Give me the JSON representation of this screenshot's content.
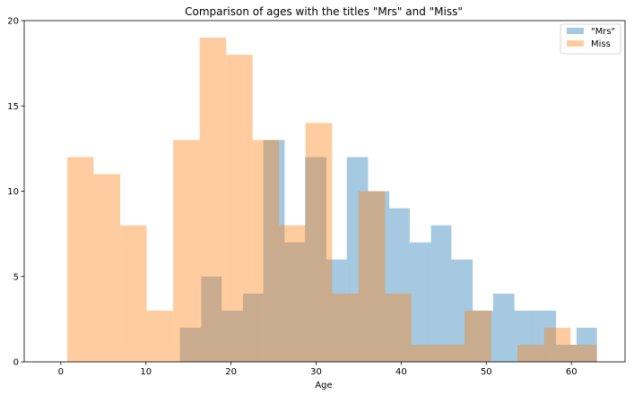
{
  "chart_data": {
    "type": "bar",
    "subtype": "overlapping-histogram",
    "title": "Comparison of ages with the titles \"Mrs\" and \"Miss\"",
    "xlabel": "Age",
    "ylabel": "",
    "xlim": [
      -4.3,
      66.3
    ],
    "ylim": [
      0,
      20
    ],
    "xticks": [
      0,
      10,
      20,
      30,
      40,
      50,
      60
    ],
    "yticks": [
      0,
      5,
      10,
      15,
      20
    ],
    "grid": false,
    "legend": "top-right",
    "bar_opacity": 0.4,
    "series": [
      {
        "name": "\"Mrs\"",
        "color": "#1f77b4",
        "bins": [
          {
            "x0": 14.0,
            "x1": 16.5,
            "count": 2
          },
          {
            "x0": 16.5,
            "x1": 18.9,
            "count": 5
          },
          {
            "x0": 18.9,
            "x1": 21.4,
            "count": 3
          },
          {
            "x0": 21.4,
            "x1": 23.8,
            "count": 4
          },
          {
            "x0": 23.8,
            "x1": 26.3,
            "count": 13
          },
          {
            "x0": 26.3,
            "x1": 28.7,
            "count": 7
          },
          {
            "x0": 28.7,
            "x1": 31.2,
            "count": 12
          },
          {
            "x0": 31.2,
            "x1": 33.6,
            "count": 6
          },
          {
            "x0": 33.6,
            "x1": 36.1,
            "count": 12
          },
          {
            "x0": 36.1,
            "x1": 38.6,
            "count": 10
          },
          {
            "x0": 38.6,
            "x1": 41.0,
            "count": 9
          },
          {
            "x0": 41.0,
            "x1": 43.5,
            "count": 7
          },
          {
            "x0": 43.5,
            "x1": 45.9,
            "count": 8
          },
          {
            "x0": 45.9,
            "x1": 48.4,
            "count": 6
          },
          {
            "x0": 48.4,
            "x1": 50.8,
            "count": 3
          },
          {
            "x0": 50.8,
            "x1": 53.3,
            "count": 4
          },
          {
            "x0": 53.3,
            "x1": 55.7,
            "count": 3
          },
          {
            "x0": 55.7,
            "x1": 58.2,
            "count": 3
          },
          {
            "x0": 58.2,
            "x1": 60.6,
            "count": 1
          },
          {
            "x0": 60.6,
            "x1": 63.0,
            "count": 2
          }
        ]
      },
      {
        "name": "Miss",
        "color": "#ff7f0e",
        "bins": [
          {
            "x0": 0.75,
            "x1": 3.86,
            "count": 12
          },
          {
            "x0": 3.86,
            "x1": 6.98,
            "count": 11
          },
          {
            "x0": 6.98,
            "x1": 10.09,
            "count": 8
          },
          {
            "x0": 10.09,
            "x1": 13.2,
            "count": 3
          },
          {
            "x0": 13.2,
            "x1": 16.31,
            "count": 13
          },
          {
            "x0": 16.31,
            "x1": 19.43,
            "count": 19
          },
          {
            "x0": 19.43,
            "x1": 22.54,
            "count": 18
          },
          {
            "x0": 22.54,
            "x1": 25.65,
            "count": 13
          },
          {
            "x0": 25.65,
            "x1": 28.76,
            "count": 8
          },
          {
            "x0": 28.76,
            "x1": 31.88,
            "count": 14
          },
          {
            "x0": 31.88,
            "x1": 34.99,
            "count": 4
          },
          {
            "x0": 34.99,
            "x1": 38.1,
            "count": 10
          },
          {
            "x0": 38.1,
            "x1": 41.21,
            "count": 4
          },
          {
            "x0": 41.21,
            "x1": 44.33,
            "count": 1
          },
          {
            "x0": 44.33,
            "x1": 47.44,
            "count": 1
          },
          {
            "x0": 47.44,
            "x1": 50.55,
            "count": 3
          },
          {
            "x0": 50.55,
            "x1": 53.66,
            "count": 0
          },
          {
            "x0": 53.66,
            "x1": 56.78,
            "count": 1
          },
          {
            "x0": 56.78,
            "x1": 59.89,
            "count": 2
          },
          {
            "x0": 59.89,
            "x1": 63.0,
            "count": 1
          }
        ]
      }
    ]
  }
}
